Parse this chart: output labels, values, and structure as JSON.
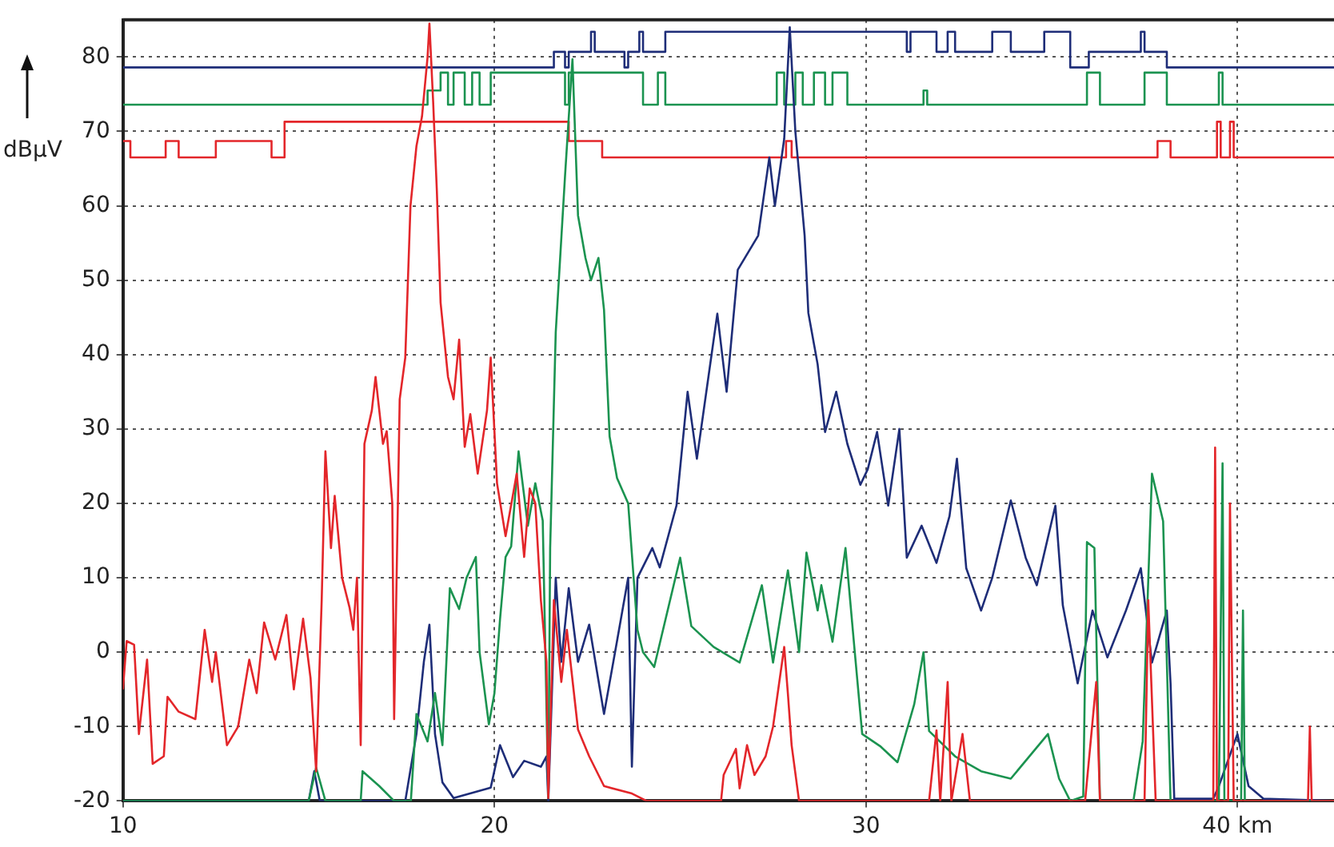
{
  "chart_data": {
    "type": "line",
    "ylabel": "dBµV",
    "xlim": [
      10,
      42.6
    ],
    "xticks": [
      10,
      20,
      30,
      {
        "value": 40,
        "label": "40 km"
      }
    ],
    "ylim": [
      -20,
      85
    ],
    "yticks": [
      -20,
      -10,
      0,
      10,
      20,
      30,
      40,
      50,
      60,
      70,
      80
    ],
    "grid": true,
    "series": [
      {
        "type": "line",
        "color": "#e3262a",
        "x": [
          10.0,
          10.1,
          10.3,
          10.43,
          10.65,
          10.8,
          11.1,
          11.2,
          11.5,
          11.95,
          12.2,
          12.4,
          12.5,
          12.8,
          13.1,
          13.4,
          13.6,
          13.8,
          14.1,
          14.4,
          14.6,
          14.85,
          15.05,
          15.2,
          15.35,
          15.45,
          15.6,
          15.7,
          15.9,
          16.1,
          16.2,
          16.3,
          16.4,
          16.5,
          16.7,
          16.8,
          17.0,
          17.1,
          17.25,
          17.3,
          17.45,
          17.6,
          17.74,
          17.9,
          18.05,
          18.2,
          18.25,
          18.35,
          18.45,
          18.55,
          18.75,
          18.9,
          19.05,
          19.2,
          19.35,
          19.55,
          19.8,
          19.9,
          20.07,
          20.3,
          20.6,
          20.8,
          20.95,
          21.1,
          21.25,
          21.4,
          21.45,
          21.6,
          21.8,
          21.95,
          22.25,
          22.55,
          22.95,
          23.7,
          24.1,
          26.1,
          26.17,
          26.5,
          26.6,
          26.8,
          27.0,
          27.3,
          27.5,
          27.8,
          27.9,
          28.0,
          28.2,
          31.7,
          31.9,
          32.0,
          32.2,
          32.3,
          32.6,
          32.8,
          35.9,
          36.2,
          36.3,
          37.5,
          37.6,
          37.8,
          39.35,
          39.4,
          39.45,
          39.75,
          39.8,
          39.9,
          41.9,
          41.95,
          42.0,
          42.6
        ],
        "values": [
          -5,
          1.5,
          1,
          -11,
          -1,
          -15,
          -14,
          -6,
          -8,
          -9,
          3,
          -4,
          0,
          -12.5,
          -10,
          -1,
          -5.5,
          4,
          -1,
          5,
          -5,
          4.5,
          -3.5,
          -16,
          7,
          27,
          14,
          21,
          10,
          6,
          3,
          10,
          -12.5,
          28,
          32.5,
          37,
          28,
          29.7,
          20,
          -9,
          34,
          39.6,
          60,
          68,
          72,
          80,
          84.5,
          74,
          62,
          47,
          37,
          34,
          42,
          27.6,
          32,
          24,
          32.5,
          39.6,
          22.7,
          15.6,
          24,
          12.8,
          22,
          20,
          7,
          -1.3,
          -19.6,
          7,
          -4,
          3,
          -10.4,
          -14,
          -18,
          -19,
          -20,
          -20,
          -16.5,
          -13,
          -18.3,
          -12.5,
          -16.5,
          -14,
          -10,
          0.7,
          -5.6,
          -12.5,
          -20,
          -20,
          -10.5,
          -20,
          -4,
          -20,
          -11,
          -20,
          -20,
          -4,
          -20,
          -20,
          7,
          -20,
          -20,
          27.5,
          -20,
          -20,
          20,
          -20,
          -20,
          -10,
          -20,
          -20
        ]
      },
      {
        "type": "line",
        "color": "#1b9350",
        "x": [
          10.0,
          15.0,
          15.2,
          15.45,
          16.4,
          16.45,
          16.9,
          17.3,
          17.75,
          17.9,
          18.2,
          18.4,
          18.6,
          18.8,
          19.05,
          19.25,
          19.5,
          19.6,
          19.85,
          20.0,
          20.15,
          20.3,
          20.45,
          20.65,
          20.9,
          21.1,
          21.3,
          21.45,
          21.5,
          21.65,
          21.9,
          22.1,
          22.25,
          22.45,
          22.6,
          22.8,
          22.95,
          23.1,
          23.3,
          23.6,
          23.85,
          24.0,
          24.3,
          25.0,
          25.3,
          25.9,
          26.6,
          27.2,
          27.5,
          27.9,
          28.2,
          28.4,
          28.7,
          28.8,
          29.1,
          29.45,
          29.7,
          29.9,
          30.4,
          30.85,
          31.3,
          31.55,
          31.7,
          32.4,
          33.1,
          33.9,
          34.9,
          35.2,
          35.5,
          35.85,
          35.95,
          36.15,
          36.3,
          37.2,
          37.45,
          37.7,
          38.0,
          38.2,
          39.5,
          39.6,
          39.65,
          40.1,
          40.15,
          40.2,
          42.6
        ],
        "values": [
          -20,
          -20,
          -15.5,
          -20,
          -20,
          -16,
          -18,
          -20,
          -20,
          -8.3,
          -12,
          -5.5,
          -12.5,
          8.6,
          5.8,
          10,
          12.8,
          0,
          -9.7,
          -5.5,
          4.4,
          12.8,
          14.2,
          27,
          17,
          22.7,
          17.7,
          -19.6,
          14,
          43,
          64,
          79.7,
          58.7,
          53,
          50,
          53,
          46,
          29,
          23.4,
          20,
          3,
          0,
          -2,
          12.7,
          3.5,
          0.7,
          -1.4,
          9,
          -1.4,
          11,
          0,
          13.4,
          5.6,
          9,
          1.4,
          14,
          0,
          -11,
          -12.7,
          -14.8,
          -7,
          0,
          -10.6,
          -14,
          -16,
          -17,
          -11,
          -17,
          -20,
          -19.4,
          14.8,
          14,
          -20,
          -20,
          -12,
          24,
          17.6,
          -20,
          -20,
          25.4,
          -20,
          -20,
          5.6,
          -20,
          -20
        ]
      },
      {
        "type": "line",
        "color": "#1e2d78",
        "x": [
          10.0,
          15.0,
          15.15,
          15.3,
          17.6,
          17.9,
          18.1,
          18.25,
          18.4,
          18.6,
          18.9,
          19.9,
          20.15,
          20.5,
          20.8,
          21.25,
          21.4,
          21.45,
          21.65,
          21.8,
          22.0,
          22.25,
          22.55,
          22.95,
          23.3,
          23.6,
          23.7,
          23.85,
          24.25,
          24.45,
          24.9,
          25.2,
          25.45,
          26.0,
          26.25,
          26.55,
          27.1,
          27.4,
          27.55,
          27.8,
          27.95,
          28.1,
          28.35,
          28.45,
          28.7,
          28.9,
          29.2,
          29.5,
          29.85,
          30.05,
          30.3,
          30.6,
          30.9,
          31.1,
          31.5,
          31.9,
          32.25,
          32.45,
          32.7,
          33.1,
          33.4,
          33.9,
          34.3,
          34.6,
          35.1,
          35.3,
          35.7,
          36.1,
          36.5,
          37.0,
          37.4,
          37.7,
          38.1,
          38.2,
          38.3,
          39.35,
          39.5,
          40.0,
          40.3,
          40.7,
          42.6
        ],
        "values": [
          -20,
          -20,
          -16,
          -20,
          -20,
          -11,
          -1.3,
          3.7,
          -11,
          -17.5,
          -19.6,
          -18.2,
          -12.5,
          -16.8,
          -14.6,
          -15.4,
          -14,
          -20,
          10,
          -1.3,
          8.6,
          -1.3,
          3.7,
          -8.3,
          1.5,
          10,
          -15.4,
          10,
          14,
          11.4,
          19.7,
          35,
          26,
          45.5,
          35,
          51.4,
          56,
          66.5,
          60,
          69,
          84,
          70,
          56,
          45.6,
          38.7,
          29.6,
          35,
          28,
          22.5,
          24.6,
          29.6,
          19.7,
          30,
          12.7,
          17,
          12,
          18.3,
          26,
          11.3,
          5.6,
          10,
          20.4,
          12.7,
          9,
          19.7,
          6.3,
          -4.2,
          5.6,
          -0.7,
          5.6,
          11.3,
          -1.4,
          5.6,
          -4.2,
          -19.7,
          -19.7,
          -18,
          -11,
          -18,
          -19.7,
          -20
        ]
      },
      {
        "type": "step",
        "color": "#e3262a",
        "x": [
          10,
          10.2,
          11.15,
          11.5,
          12.5,
          14.0,
          14.35,
          22.0,
          22.9,
          27.85,
          28.0,
          37.85,
          38.2,
          39.45,
          39.55,
          39.8,
          39.9,
          42.6
        ],
        "values": [
          68.7,
          66.5,
          68.7,
          66.5,
          68.7,
          66.5,
          71.3,
          68.7,
          66.5,
          68.7,
          66.5,
          68.7,
          66.5,
          71.3,
          66.5,
          71.3,
          66.5,
          66.5
        ]
      },
      {
        "type": "step",
        "color": "#1b9350",
        "x": [
          10,
          18.2,
          18.55,
          18.75,
          18.9,
          19.2,
          19.4,
          19.6,
          19.9,
          21.9,
          22.0,
          24.0,
          24.4,
          24.6,
          27.6,
          27.8,
          28.1,
          28.3,
          28.6,
          28.9,
          29.1,
          29.5,
          31.55,
          31.65,
          35.95,
          36.3,
          37.5,
          38.1,
          39.5,
          39.6,
          42.6
        ],
        "values": [
          73.6,
          75.5,
          77.9,
          73.6,
          77.9,
          73.6,
          77.9,
          73.6,
          77.9,
          73.6,
          77.9,
          73.6,
          77.9,
          73.6,
          77.9,
          73.6,
          77.9,
          73.6,
          77.9,
          73.6,
          77.9,
          73.6,
          75.5,
          73.6,
          77.9,
          73.6,
          77.9,
          73.6,
          77.9,
          73.6,
          73.6
        ]
      },
      {
        "type": "step",
        "color": "#1e2d78",
        "x": [
          10,
          21.6,
          21.9,
          22.0,
          22.6,
          22.7,
          23.5,
          23.6,
          23.9,
          24.0,
          24.6,
          31.1,
          31.2,
          31.9,
          32.2,
          32.4,
          33.4,
          33.9,
          34.8,
          35.5,
          36.0,
          37.4,
          37.5,
          38.1,
          42.6
        ],
        "values": [
          78.6,
          80.7,
          78.6,
          80.7,
          83.4,
          80.7,
          78.6,
          80.7,
          83.4,
          80.7,
          83.4,
          80.7,
          83.4,
          80.7,
          83.4,
          80.7,
          83.4,
          80.7,
          83.4,
          78.6,
          80.7,
          83.4,
          80.7,
          78.6,
          78.6
        ]
      }
    ]
  }
}
